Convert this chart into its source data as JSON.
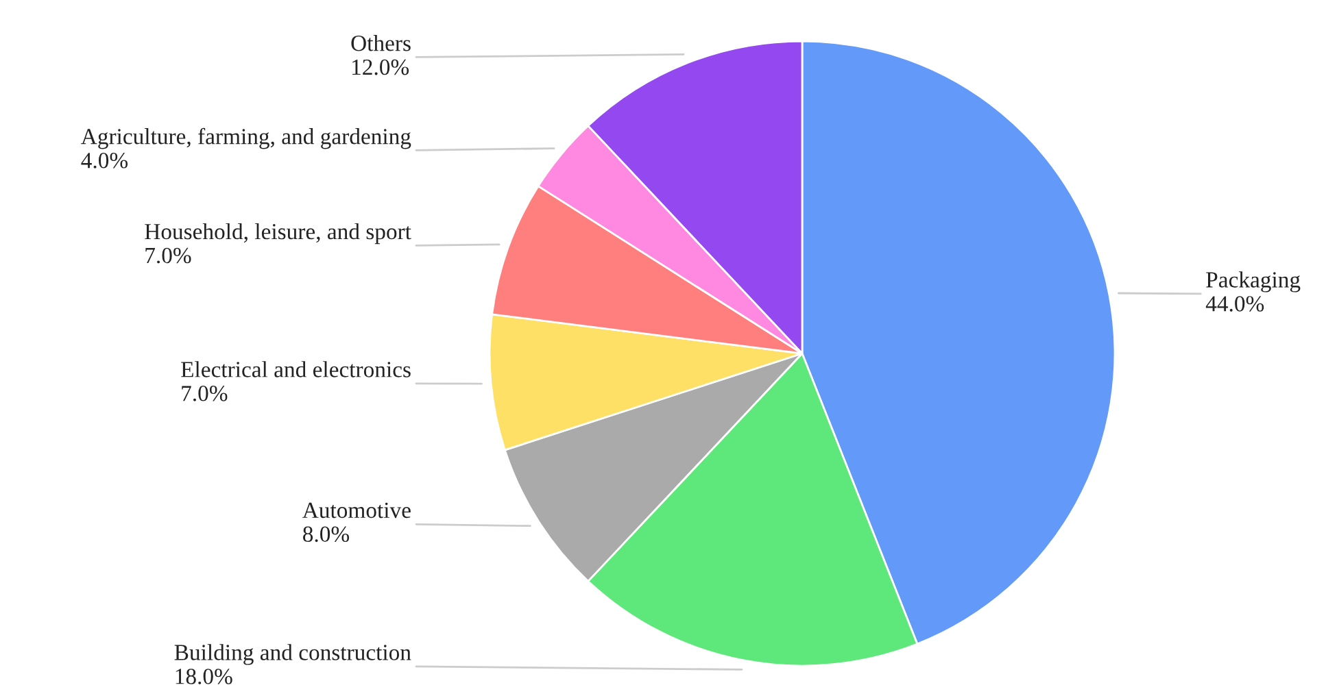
{
  "chart_data": {
    "type": "pie",
    "categories": [
      "Packaging",
      "Building and construction",
      "Automotive",
      "Electrical and electronics",
      "Household, leisure, and sport",
      "Agriculture, farming, and gardening",
      "Others"
    ],
    "values": [
      44,
      18,
      8,
      7,
      7,
      4,
      12
    ],
    "value_labels": [
      "44.0%",
      "18.0%",
      "8.0%",
      "7.0%",
      "7.0%",
      "4.0%",
      "12.0%"
    ],
    "colors": [
      "#6399f8",
      "#5ee87c",
      "#aaaaaa",
      "#ffe066",
      "#ff7f7f",
      "#ff88e0",
      "#9448f0"
    ],
    "legend": false
  }
}
